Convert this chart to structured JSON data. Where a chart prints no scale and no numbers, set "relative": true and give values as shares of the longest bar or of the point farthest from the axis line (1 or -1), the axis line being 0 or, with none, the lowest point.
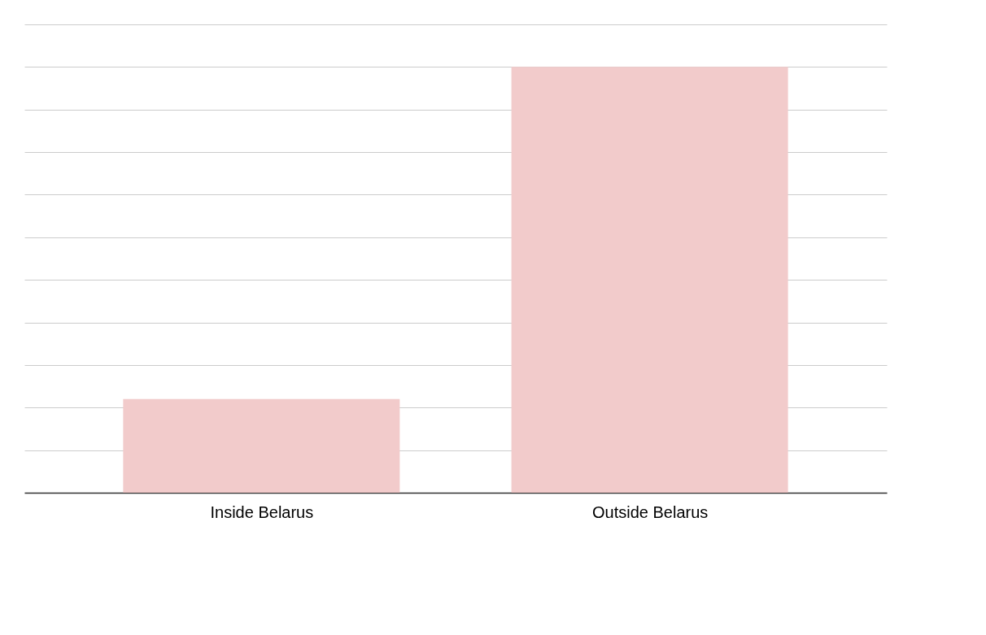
{
  "chart_data": {
    "type": "bar",
    "categories": [
      "Inside Belarus",
      "Outside Belarus"
    ],
    "values": [
      0.22,
      1
    ],
    "color": "#f2cbcb",
    "relative": true,
    "grid": "y"
  }
}
